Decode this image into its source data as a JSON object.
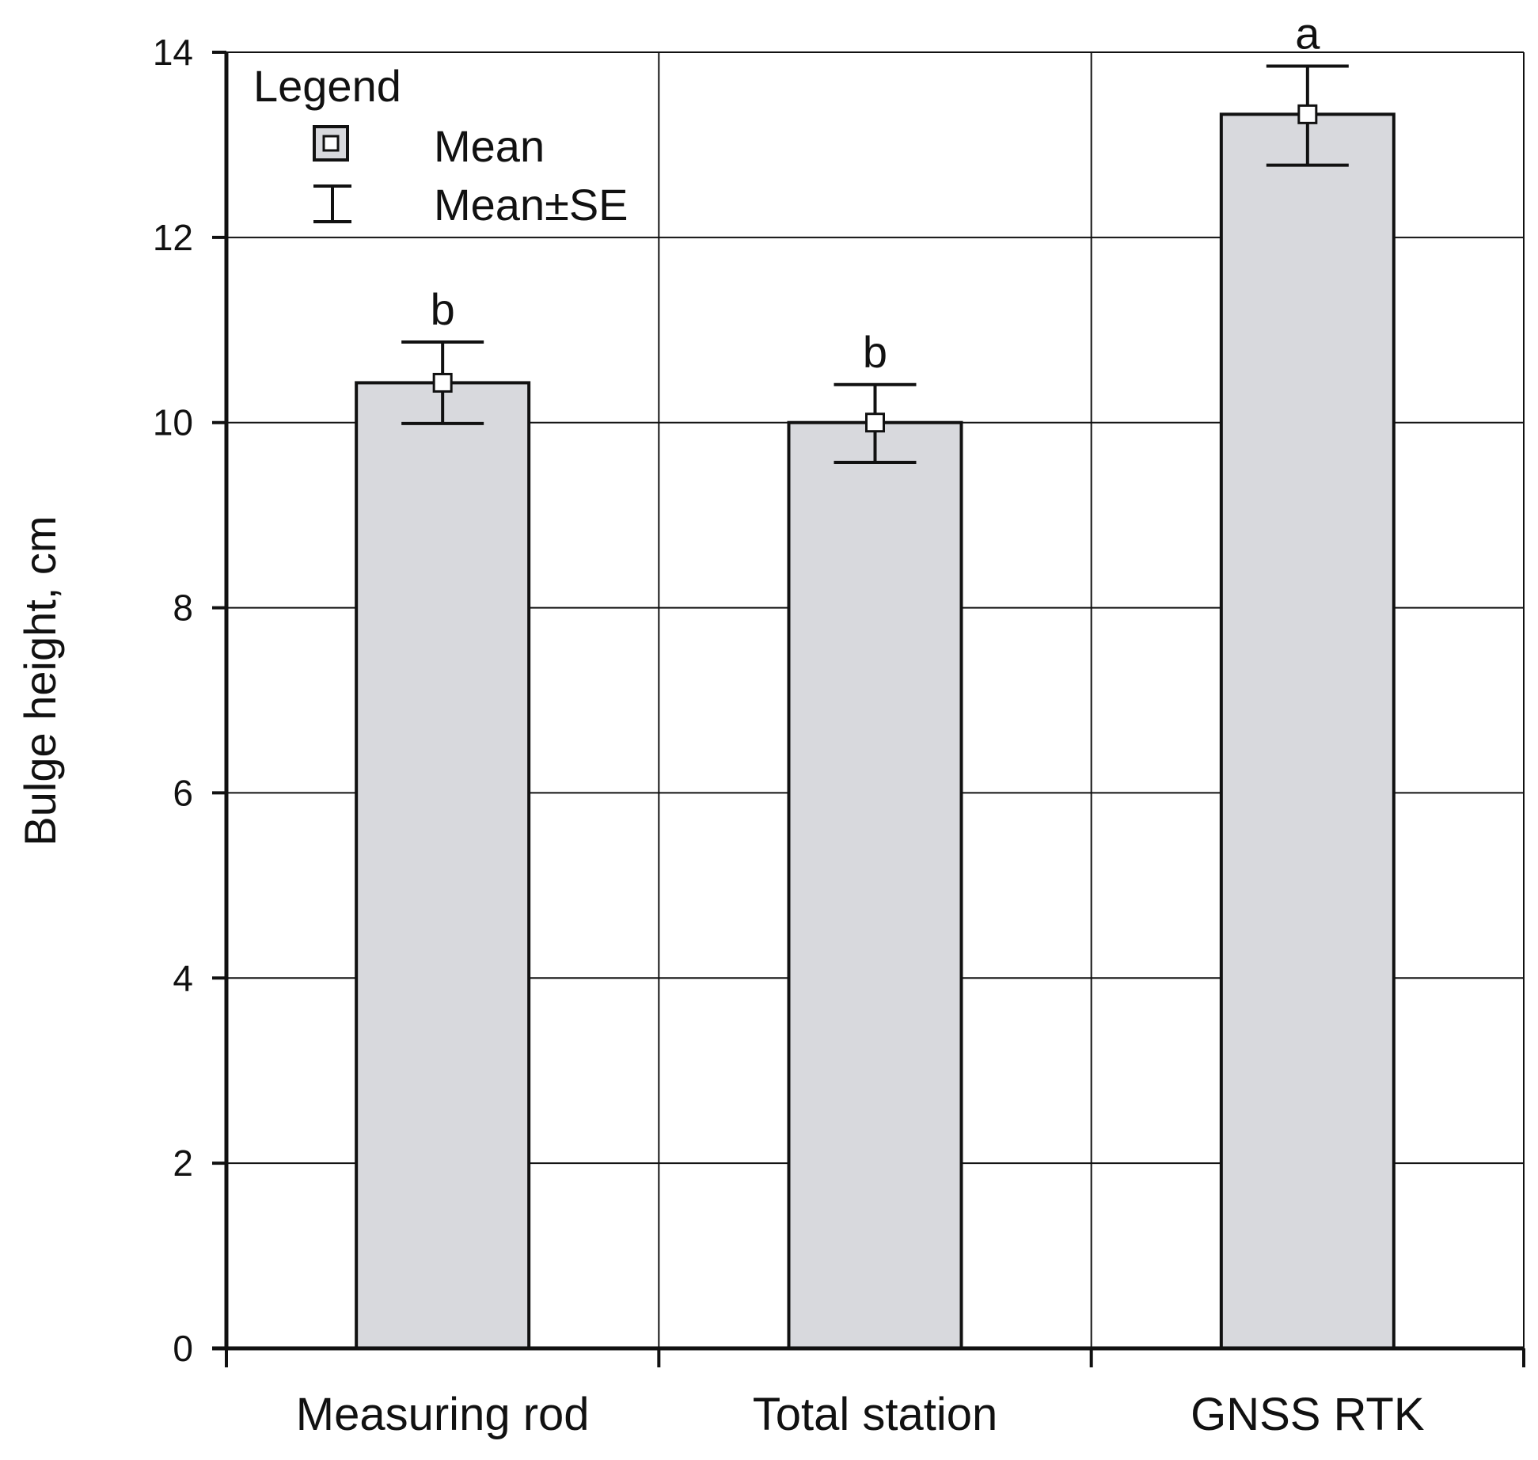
{
  "chart_data": {
    "type": "bar",
    "categories": [
      "Measuring rod",
      "Total station",
      "GNSS RTK"
    ],
    "values": [
      10.43,
      10.0,
      13.33
    ],
    "error_low": [
      9.99,
      9.57,
      12.78
    ],
    "error_high": [
      10.87,
      10.41,
      13.85
    ],
    "significance_letters": [
      "b",
      "b",
      "a"
    ],
    "ylabel": "Bulge height, cm",
    "xlabel": "",
    "ylim": [
      0,
      14
    ],
    "yticks": [
      0,
      2,
      4,
      6,
      8,
      10,
      12,
      14
    ],
    "grid": true,
    "legend": {
      "title": "Legend",
      "items": [
        {
          "label": "Mean",
          "icon": "square-marker-icon"
        },
        {
          "label": "Mean±SE",
          "icon": "error-bar-icon"
        }
      ],
      "placement": "top-left"
    },
    "colors": {
      "bar_fill": "#d8d9dd",
      "bar_stroke": "#111111",
      "grid": "#111111",
      "axis": "#111111"
    }
  }
}
